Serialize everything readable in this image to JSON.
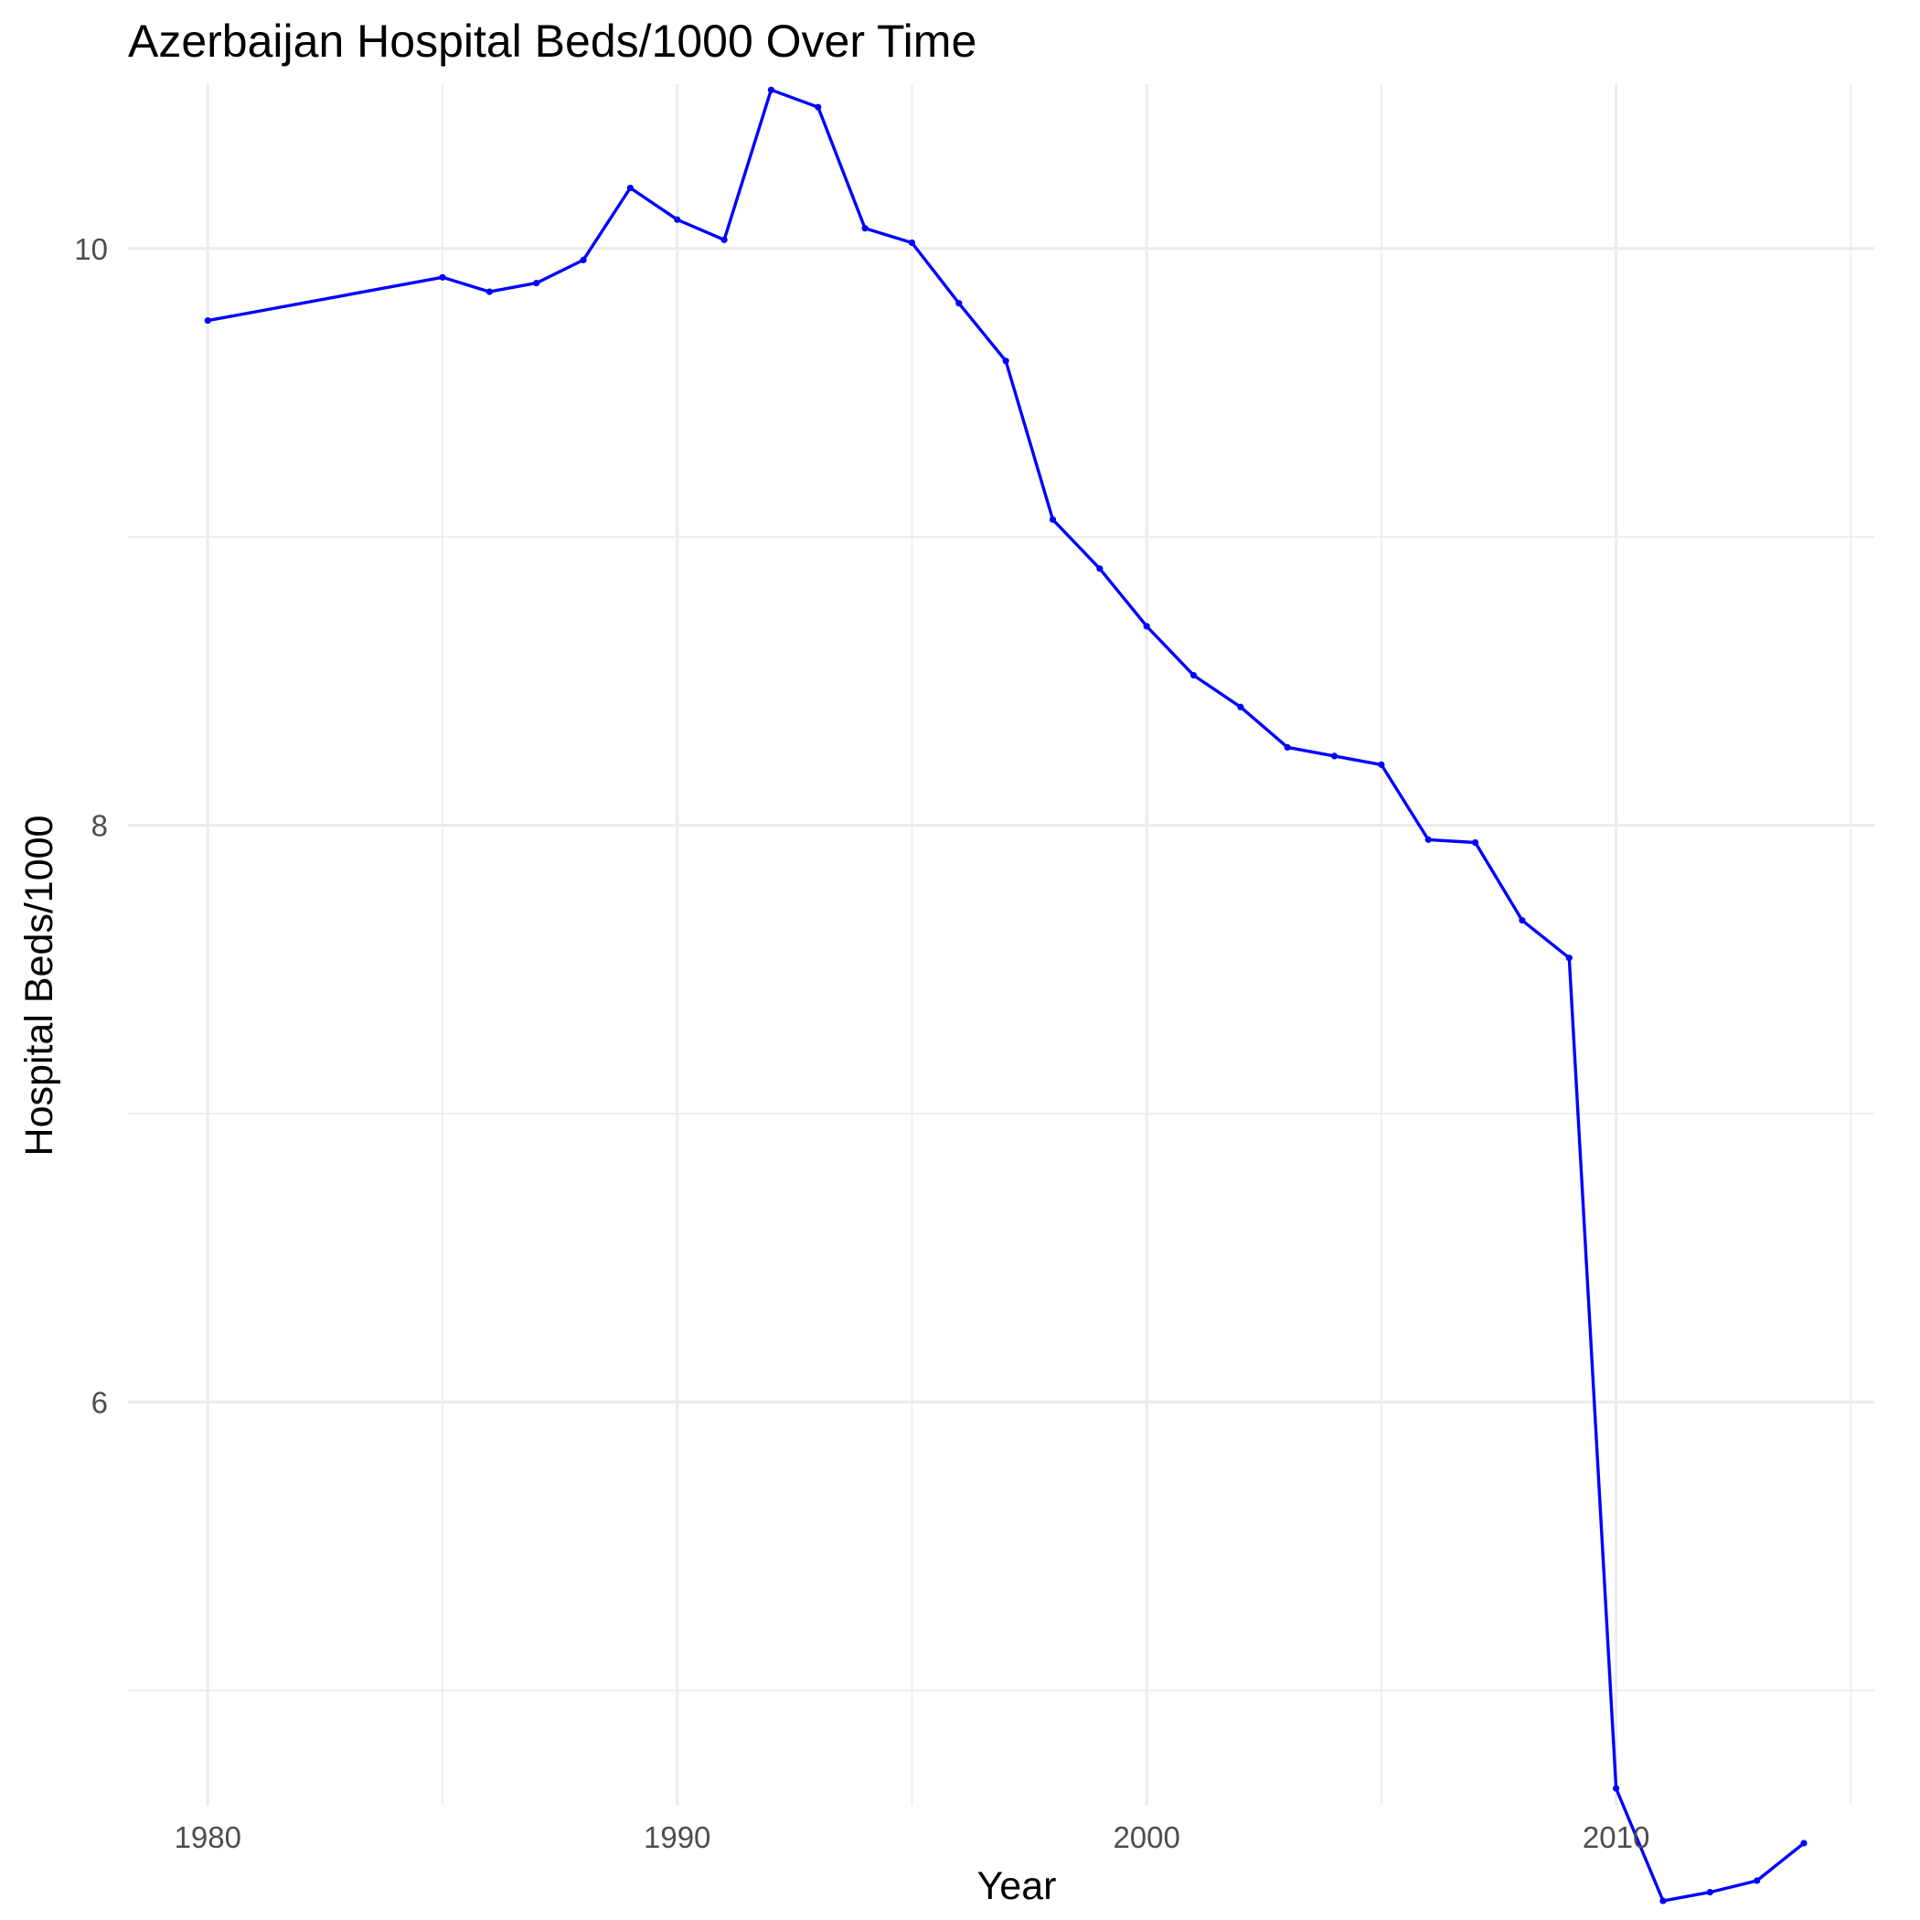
{
  "chart_data": {
    "type": "line",
    "title": "Azerbaijan Hospital Beds/1000 Over Time",
    "xlabel": "Year",
    "ylabel": "Hospital Beds/1000",
    "xlim": [
      1978.3,
      2015.5
    ],
    "ylim": [
      4.6,
      10.57
    ],
    "x_ticks": [
      1980,
      1990,
      2000,
      2010
    ],
    "x_minor_ticks": [
      1985,
      1995,
      2005,
      2015
    ],
    "y_ticks": [
      6,
      8,
      10
    ],
    "y_minor_ticks": [
      5,
      7,
      9
    ],
    "grid": true,
    "legend": "none",
    "series": [
      {
        "color": "#0000ff",
        "x": [
          1980,
          1985,
          1986,
          1987,
          1988,
          1989,
          1990,
          1991,
          1992,
          1993,
          1994,
          1995,
          1996,
          1997,
          1998,
          1999,
          2000,
          2001,
          2002,
          2003,
          2004,
          2005,
          2006,
          2007,
          2008,
          2009,
          2010,
          2011,
          2012,
          2013,
          2014
        ],
        "y": [
          9.75,
          9.9,
          9.85,
          9.88,
          9.96,
          10.21,
          10.1,
          10.03,
          10.55,
          10.49,
          10.07,
          10.02,
          9.81,
          9.61,
          9.06,
          8.89,
          8.69,
          8.52,
          8.41,
          8.27,
          8.24,
          8.21,
          7.95,
          7.94,
          7.67,
          7.54,
          4.66,
          4.27,
          4.3,
          4.34,
          4.47
        ]
      }
    ]
  }
}
